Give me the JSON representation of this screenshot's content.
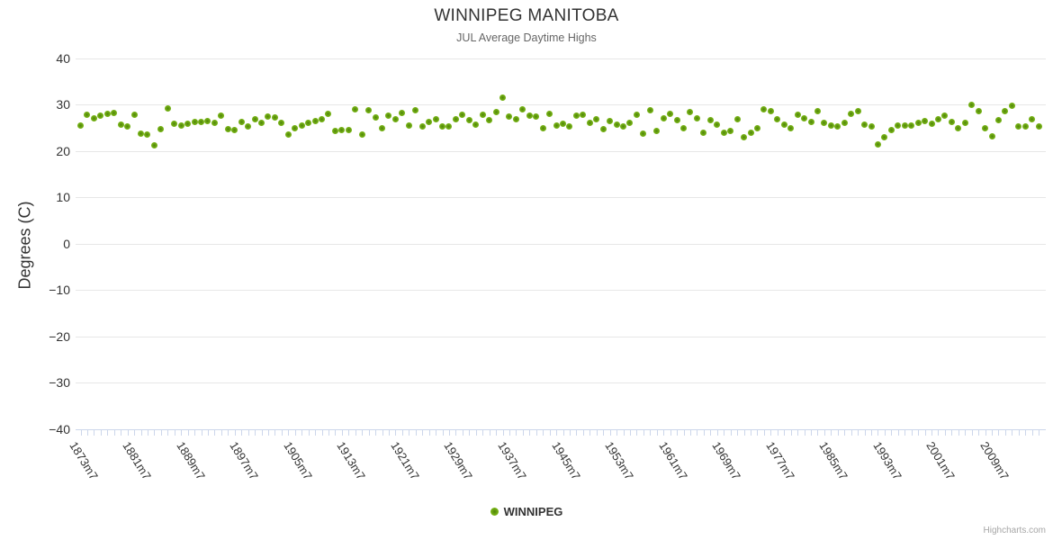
{
  "header": {
    "title": "WINNIPEG MANITOBA",
    "subtitle": "JUL Average Daytime Highs"
  },
  "legend": {
    "label": "WINNIPEG"
  },
  "credits": {
    "label": "Highcharts.com"
  },
  "colors": {
    "series_green": "#76b41c",
    "series_green_dark": "#4d820b",
    "gridline": "#e7e7e7",
    "axis_tick": "#ccd6eb",
    "title_text": "#333333",
    "subtitle_text": "#666666",
    "credits_text": "#a6a6a6"
  },
  "chart_data": {
    "type": "scatter",
    "title": "WINNIPEG MANITOBA",
    "subtitle": "JUL Average Daytime Highs",
    "xlabel": "",
    "ylabel": "Degrees (C)",
    "ylim": [
      -40,
      40
    ],
    "y_ticks": [
      40,
      30,
      20,
      10,
      0,
      -10,
      -20,
      -30,
      -40
    ],
    "grid": "horizontal",
    "legend_position": "bottom-center",
    "x_start_year": 1873,
    "x_end_year": 2016,
    "x_tick_interval_years": 1,
    "x_label_interval_years": 8,
    "x_labeled_years": [
      1873,
      1881,
      1889,
      1897,
      1905,
      1913,
      1921,
      1929,
      1937,
      1945,
      1953,
      1961,
      1969,
      1977,
      1985,
      1993,
      2001,
      2009
    ],
    "x_label_suffix": "m7",
    "series": [
      {
        "name": "WINNIPEG",
        "color": "#76b41c",
        "x_start_year": 1873,
        "values": [
          25.5,
          27.9,
          27.1,
          27.6,
          28.1,
          28.2,
          25.7,
          25.2,
          27.8,
          23.7,
          23.5,
          21.2,
          24.7,
          29.1,
          25.8,
          25.5,
          25.9,
          26.3,
          26.2,
          26.5,
          26.0,
          27.6,
          24.7,
          24.6,
          26.3,
          25.3,
          26.8,
          26.0,
          27.4,
          27.2,
          26.0,
          23.5,
          25.0,
          25.5,
          26.0,
          26.5,
          26.8,
          28.1,
          24.4,
          24.5,
          24.5,
          28.9,
          23.5,
          28.7,
          27.2,
          25.0,
          27.6,
          26.8,
          28.3,
          25.5,
          28.7,
          25.3,
          26.3,
          26.8,
          25.2,
          25.3,
          26.8,
          27.8,
          26.6,
          25.7,
          27.8,
          26.6,
          28.4,
          31.5,
          27.4,
          26.8,
          29.0,
          27.6,
          27.4,
          25.0,
          28.1,
          25.5,
          25.9,
          25.3,
          27.6,
          27.8,
          26.0,
          26.8,
          24.7,
          26.4,
          25.7,
          25.3,
          26.0,
          27.8,
          23.7,
          28.8,
          24.3,
          27.1,
          28.1,
          26.6,
          25.0,
          28.4,
          27.0,
          24.0,
          26.6,
          25.7,
          23.9,
          24.4,
          26.8,
          22.9,
          23.9,
          24.9,
          29.0,
          28.6,
          26.8,
          25.7,
          25.0,
          27.8,
          27.1,
          26.3,
          28.6,
          26.0,
          25.5,
          25.2,
          26.1,
          28.1,
          28.6,
          25.7,
          25.3,
          21.5,
          22.9,
          24.5,
          25.5,
          25.4,
          25.4,
          26.1,
          26.5,
          25.8,
          26.8,
          27.6,
          26.3,
          25.0,
          26.1,
          30.0,
          28.5,
          24.9,
          23.1,
          26.6,
          28.6,
          29.7,
          25.3,
          25.3,
          26.9,
          25.2
        ]
      }
    ]
  }
}
